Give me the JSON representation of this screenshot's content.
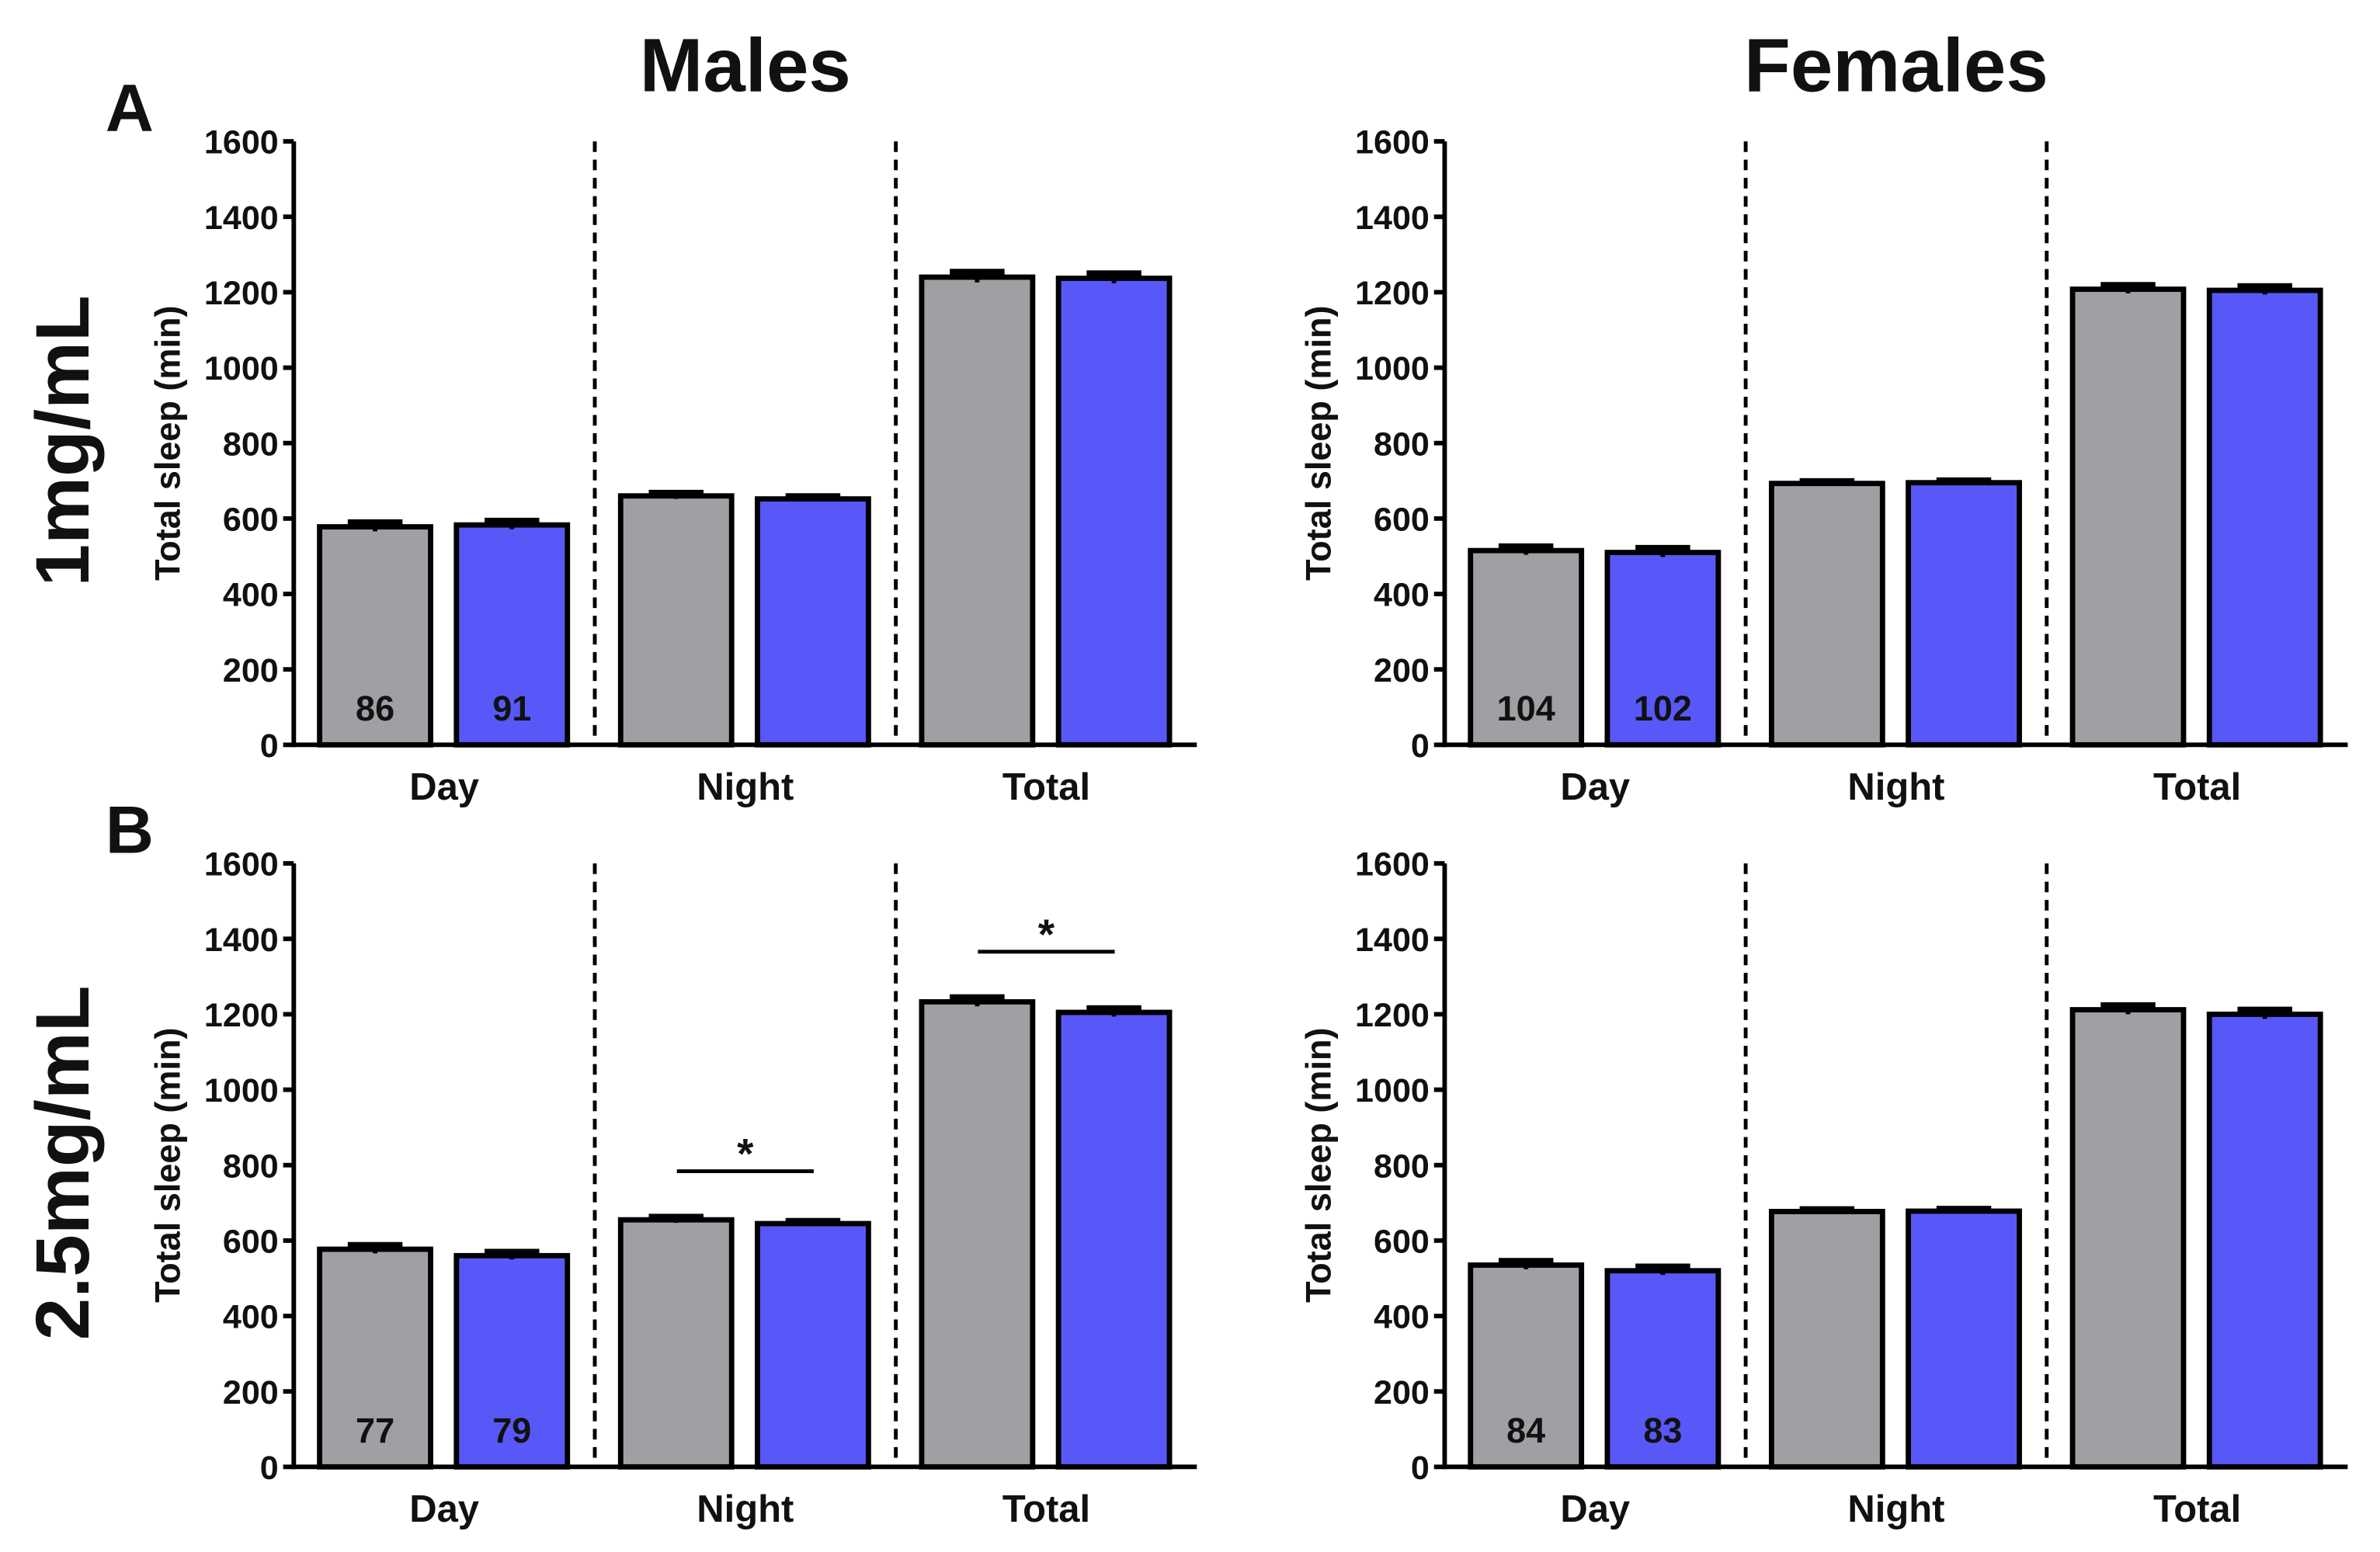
{
  "columns": [
    "Males",
    "Females"
  ],
  "rows": [
    {
      "letter": "A",
      "label": "1mg/mL"
    },
    {
      "letter": "B",
      "label": "2.5mg/mL"
    }
  ],
  "chart_data": [
    {
      "type": "bar",
      "y_label": "Total sleep (min)",
      "categories": [
        "Day",
        "Night",
        "Total"
      ],
      "ylim": [
        0,
        1600
      ],
      "yticks": [
        0,
        200,
        400,
        600,
        800,
        1000,
        1200,
        1400,
        1600
      ],
      "series": [
        {
          "color": "#a0a0a4",
          "values": [
            578,
            660,
            1240
          ],
          "errors": [
            12,
            8,
            14
          ],
          "n": 86
        },
        {
          "color": "#5858f8",
          "values": [
            583,
            652,
            1237
          ],
          "errors": [
            11,
            7,
            13
          ],
          "n": 91
        }
      ],
      "annotations": []
    },
    {
      "type": "bar",
      "y_label": "Total sleep (min)",
      "categories": [
        "Day",
        "Night",
        "Total"
      ],
      "ylim": [
        0,
        1600
      ],
      "yticks": [
        0,
        200,
        400,
        600,
        800,
        1000,
        1200,
        1400,
        1600
      ],
      "series": [
        {
          "color": "#a0a0a4",
          "values": [
            515,
            693,
            1208
          ],
          "errors": [
            11,
            6,
            11
          ],
          "n": 104
        },
        {
          "color": "#5858f8",
          "values": [
            510,
            695,
            1205
          ],
          "errors": [
            12,
            6,
            11
          ],
          "n": 102
        }
      ],
      "annotations": []
    },
    {
      "type": "bar",
      "y_label": "Total sleep (min)",
      "categories": [
        "Day",
        "Night",
        "Total"
      ],
      "ylim": [
        0,
        1600
      ],
      "yticks": [
        0,
        200,
        400,
        600,
        800,
        1000,
        1200,
        1400,
        1600
      ],
      "series": [
        {
          "color": "#a0a0a4",
          "values": [
            577,
            655,
            1233
          ],
          "errors": [
            11,
            8,
            12
          ],
          "n": 77
        },
        {
          "color": "#5858f8",
          "values": [
            560,
            645,
            1205
          ],
          "errors": [
            10,
            7,
            11
          ],
          "n": 79
        }
      ],
      "annotations": [
        {
          "category": "Night",
          "text": "*"
        },
        {
          "category": "Total",
          "text": "*"
        }
      ]
    },
    {
      "type": "bar",
      "y_label": "Total sleep (min)",
      "categories": [
        "Day",
        "Night",
        "Total"
      ],
      "ylim": [
        0,
        1600
      ],
      "yticks": [
        0,
        200,
        400,
        600,
        800,
        1000,
        1200,
        1400,
        1600
      ],
      "series": [
        {
          "color": "#a0a0a4",
          "values": [
            535,
            677,
            1212
          ],
          "errors": [
            11,
            6,
            12
          ],
          "n": 84
        },
        {
          "color": "#5858f8",
          "values": [
            520,
            678,
            1200
          ],
          "errors": [
            11,
            6,
            12
          ],
          "n": 83
        }
      ],
      "annotations": []
    }
  ]
}
